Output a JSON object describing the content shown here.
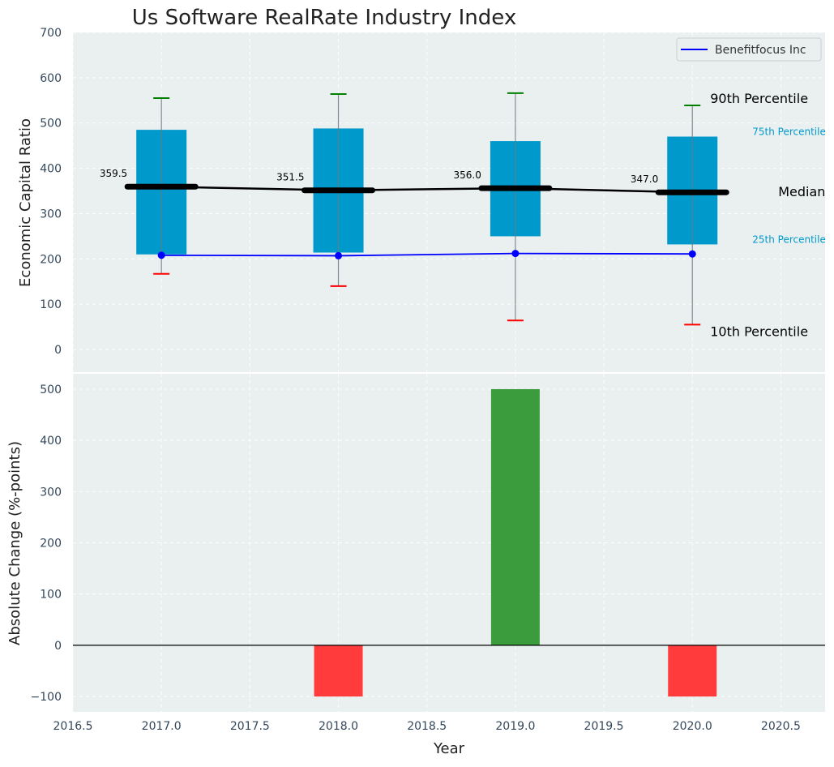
{
  "chart_data": [
    {
      "type": "box",
      "title": "Us Software RealRate Industry Index",
      "ylabel": "Economic Capital Ratio",
      "xlim": [
        2016.5,
        2020.75
      ],
      "ylim": [
        -50,
        700
      ],
      "yticks": [
        0,
        100,
        200,
        300,
        400,
        500,
        600,
        700
      ],
      "grid": true,
      "legend": {
        "placement": "top-right",
        "entries": [
          "Benefitfocus Inc"
        ]
      },
      "years": [
        2017,
        2018,
        2019,
        2020
      ],
      "p10": [
        167,
        140,
        64,
        55
      ],
      "p25": [
        210,
        214,
        250,
        232
      ],
      "median": [
        359.5,
        351.5,
        356.0,
        347.0
      ],
      "median_labels": [
        "359.5",
        "351.5",
        "356.0",
        "347.0"
      ],
      "p75": [
        485,
        488,
        460,
        470
      ],
      "p90": [
        555,
        564,
        566,
        539
      ],
      "series": [
        {
          "name": "Benefitfocus Inc",
          "x": [
            2017,
            2018,
            2019,
            2020
          ],
          "values": [
            208,
            207,
            212,
            211
          ],
          "color": "#0000ff"
        }
      ],
      "annotations": {
        "p90": "90th Percentile",
        "p75": "75th Percentile",
        "median": "Median",
        "p25": "25th Percentile",
        "p10": "10th Percentile"
      },
      "colors": {
        "box": "#0099cc",
        "median": "#000000",
        "p90": "#008000",
        "p10": "#ff0000",
        "background": "#eaeff0"
      }
    },
    {
      "type": "bar",
      "xlabel": "Year",
      "ylabel": "Absolute Change (%-points)",
      "xlim": [
        2016.5,
        2020.75
      ],
      "ylim": [
        -130,
        530
      ],
      "yticks": [
        -100,
        0,
        100,
        200,
        300,
        400,
        500
      ],
      "ytick_labels": [
        "−100",
        "0",
        "100",
        "200",
        "300",
        "400",
        "500"
      ],
      "xticks": [
        2016.5,
        2017.0,
        2017.5,
        2018.0,
        2018.5,
        2019.0,
        2019.5,
        2020.0,
        2020.5
      ],
      "xtick_labels": [
        "2016.5",
        "2017.0",
        "2017.5",
        "2018.0",
        "2018.5",
        "2019.0",
        "2019.5",
        "2020.0",
        "2020.5"
      ],
      "x": [
        2018,
        2019,
        2020
      ],
      "values": [
        -100,
        500,
        -100
      ],
      "grid": true,
      "colors": {
        "positive": "#3a9c3c",
        "negative": "#ff3b3b"
      }
    }
  ]
}
